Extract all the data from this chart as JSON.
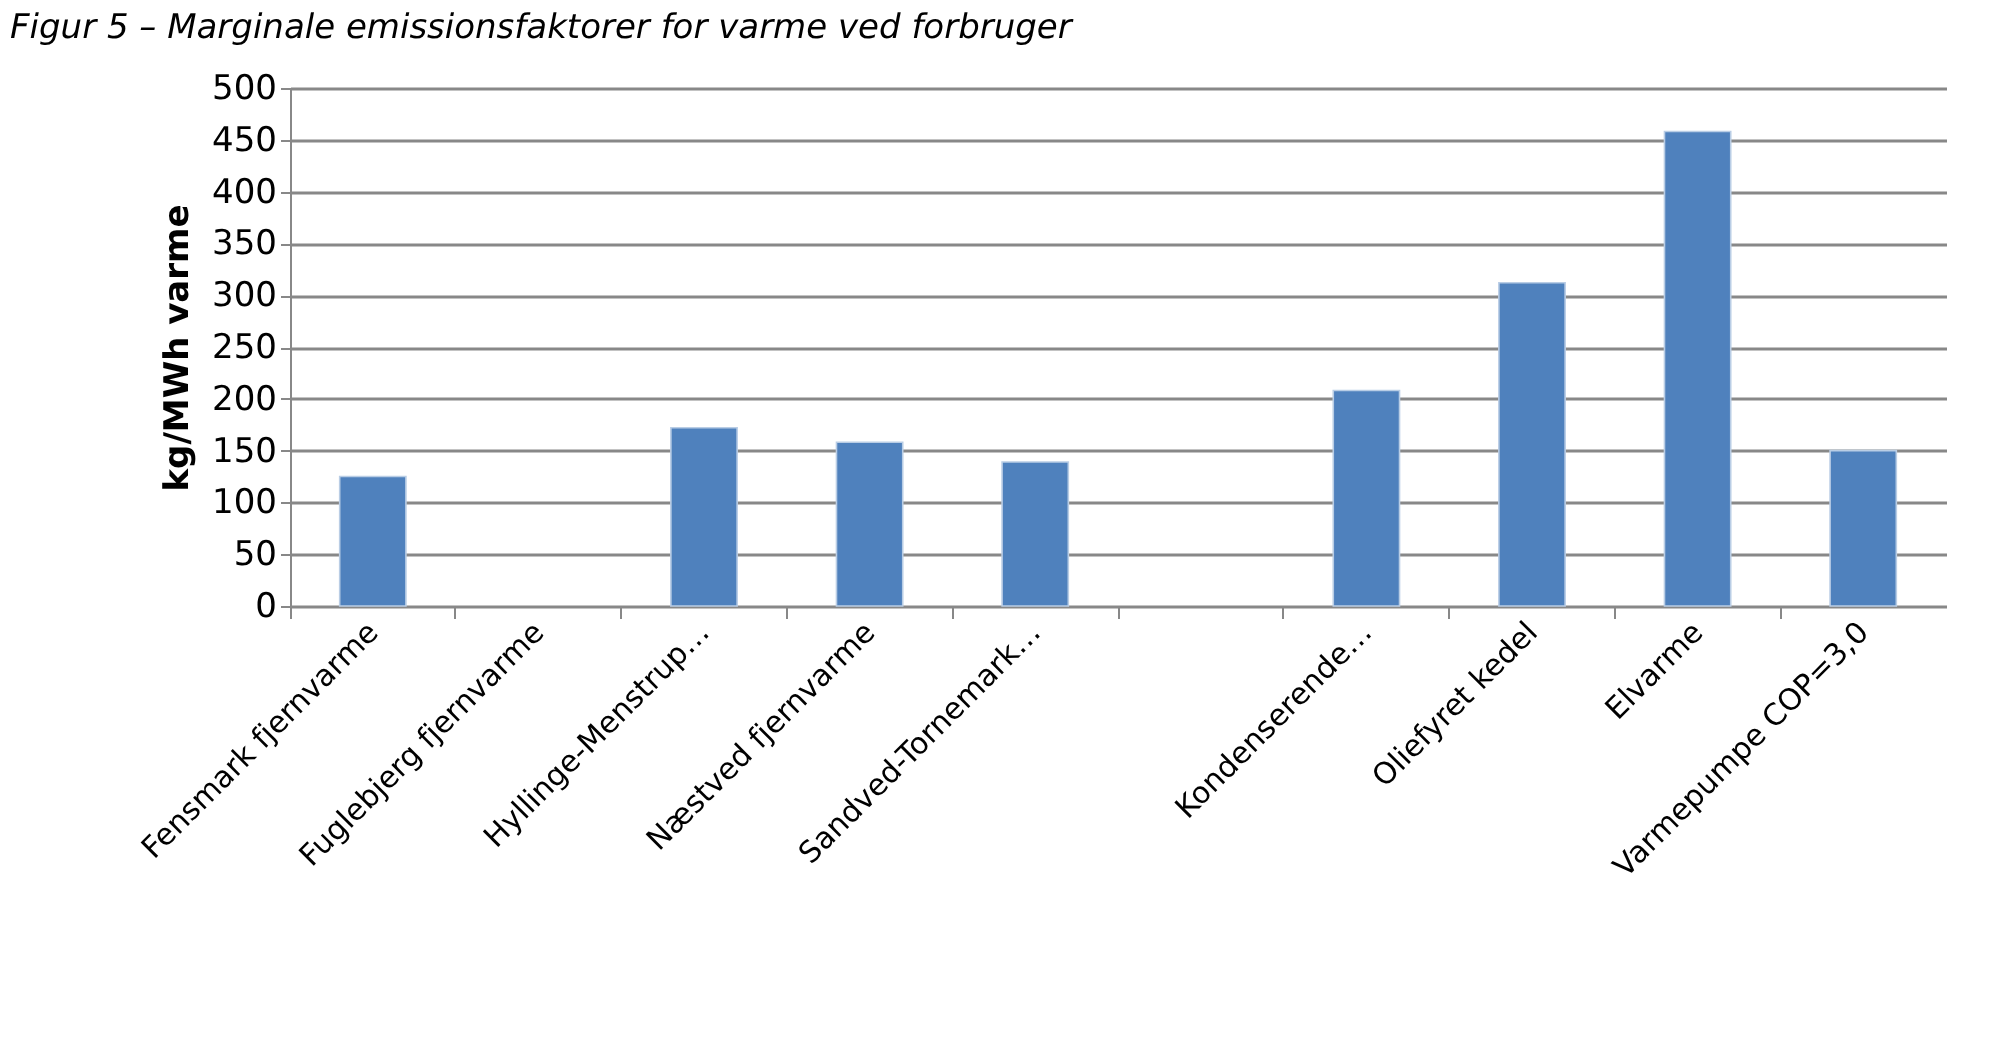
{
  "chart_data": {
    "type": "bar",
    "title": "Figur 5 – Marginale emissionsfaktorer for varme ved forbruger",
    "ylabel": "kg/MWh varme",
    "categories": [
      "Fensmark fjernvarme",
      "Fuglebjerg fjernvarme",
      "Hyllinge-Menstrup…",
      "Næstved fjernvarme",
      "Sandved-Tornemark…",
      null,
      "Kondenserende…",
      "Oliefyret kedel",
      "Elvarme",
      "Varmepumpe COP=3,0"
    ],
    "values": [
      125,
      null,
      172,
      158,
      139,
      null,
      208,
      312,
      458,
      150
    ],
    "color": "#4f81bd",
    "ylim": [
      0,
      500
    ],
    "yticks": [
      0,
      50,
      100,
      150,
      200,
      250,
      300,
      350,
      400,
      450,
      500
    ],
    "grid": "y"
  }
}
